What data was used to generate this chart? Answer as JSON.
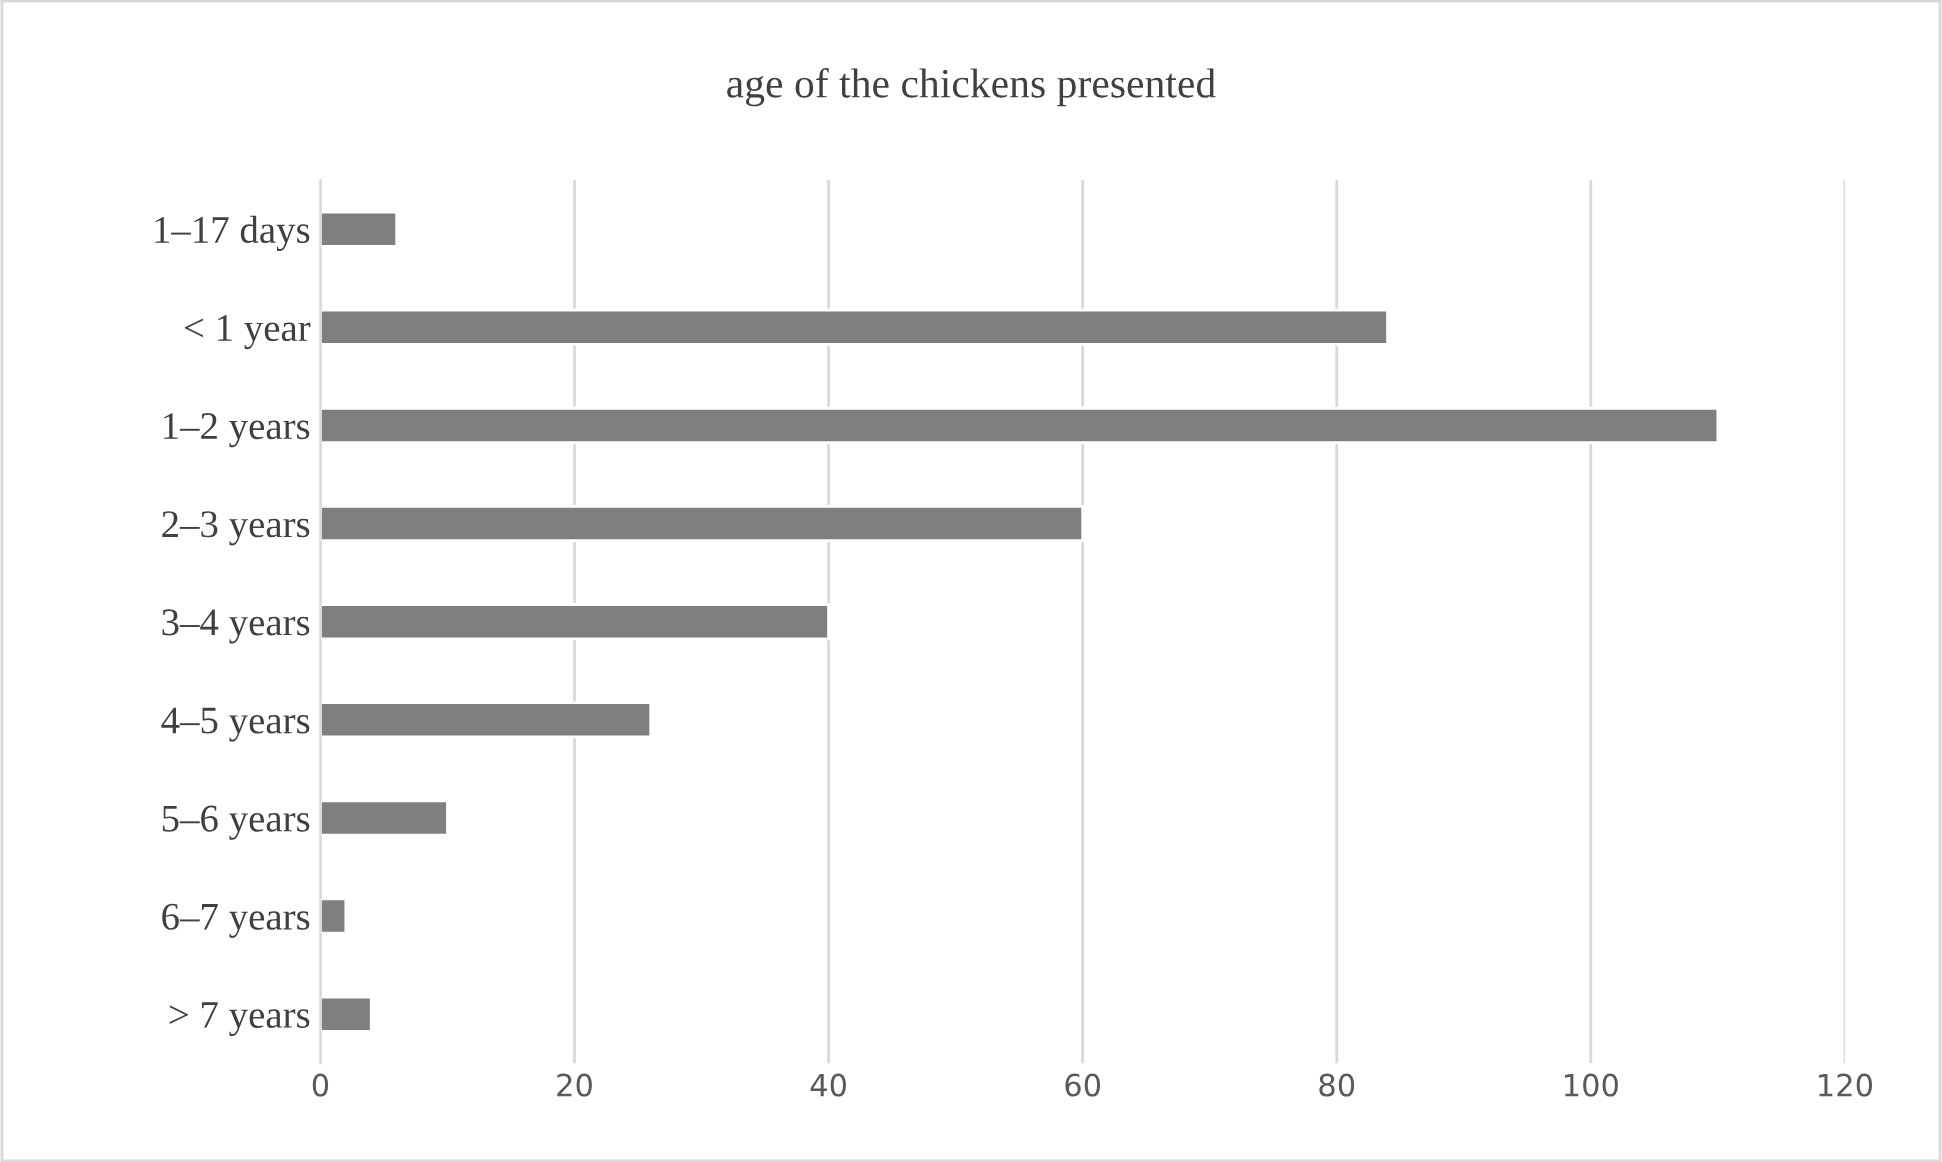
{
  "chart_data": {
    "type": "bar",
    "orientation": "horizontal",
    "title": "age of the chickens presented",
    "categories": [
      "1–17 days",
      "< 1 year",
      "1–2 years",
      "2–3 years",
      "3–4 years",
      "4–5 years",
      "5–6 years",
      "6–7 years",
      "> 7 years"
    ],
    "values": [
      6,
      84,
      110,
      60,
      40,
      26,
      10,
      2,
      4
    ],
    "color": "#7f7f7f",
    "xlim": [
      0,
      120
    ],
    "xticks": [
      0,
      20,
      40,
      60,
      80,
      100,
      120
    ],
    "grid": "x",
    "legend": false
  }
}
